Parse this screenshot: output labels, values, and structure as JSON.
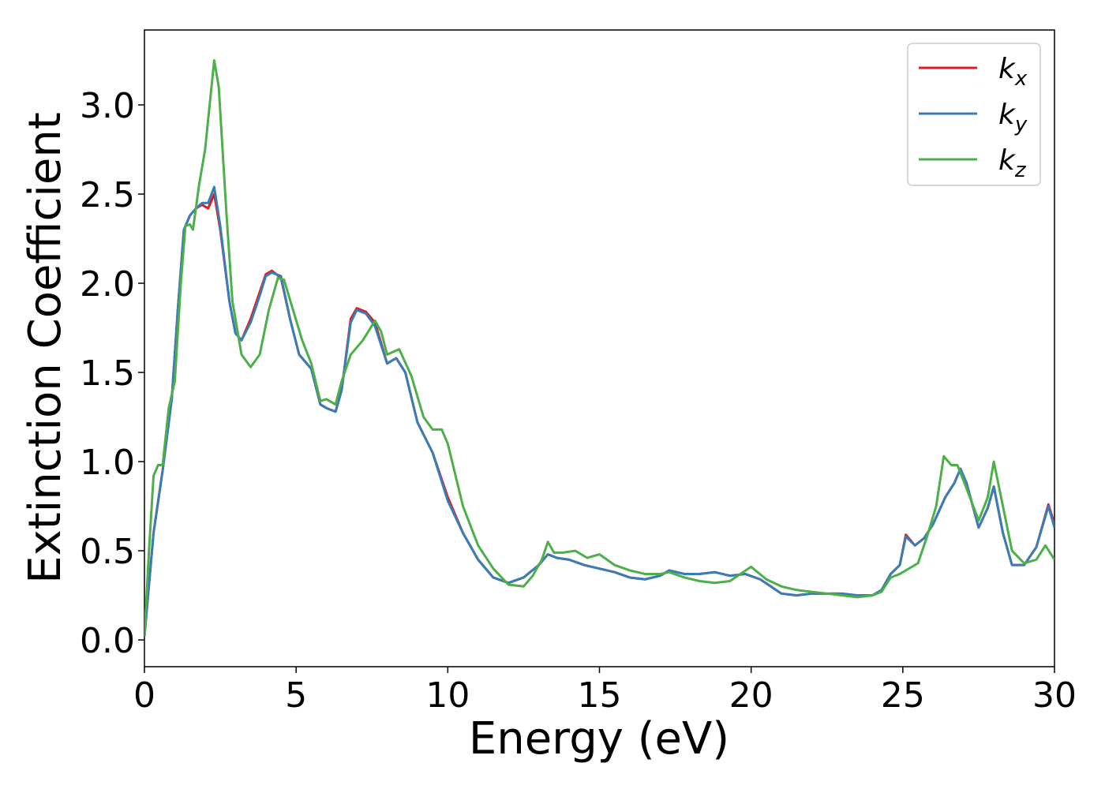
{
  "chart_data": {
    "type": "line",
    "title": "",
    "xlabel": "Energy (eV)",
    "ylabel": "Extinction Coefficient",
    "xlim": [
      0,
      30
    ],
    "ylim": [
      -0.15,
      3.42
    ],
    "xticks": [
      0,
      5,
      10,
      15,
      20,
      25,
      30
    ],
    "xtick_labels": [
      "0",
      "5",
      "10",
      "15",
      "20",
      "25",
      "30"
    ],
    "yticks": [
      0.0,
      0.5,
      1.0,
      1.5,
      2.0,
      2.5,
      3.0
    ],
    "ytick_labels": [
      "0.0",
      "0.5",
      "1.0",
      "1.5",
      "2.0",
      "2.5",
      "3.0"
    ],
    "grid": false,
    "legend_position": "top-right",
    "series": [
      {
        "name": "k",
        "subscript": "x",
        "color": "#e41a1c",
        "points": [
          [
            0,
            0.02
          ],
          [
            0.3,
            0.6
          ],
          [
            0.6,
            0.95
          ],
          [
            0.9,
            1.35
          ],
          [
            1.1,
            1.85
          ],
          [
            1.3,
            2.3
          ],
          [
            1.5,
            2.38
          ],
          [
            1.7,
            2.42
          ],
          [
            1.9,
            2.44
          ],
          [
            2.1,
            2.42
          ],
          [
            2.3,
            2.5
          ],
          [
            2.5,
            2.3
          ],
          [
            2.8,
            1.9
          ],
          [
            3.0,
            1.72
          ],
          [
            3.2,
            1.68
          ],
          [
            3.5,
            1.8
          ],
          [
            3.8,
            1.95
          ],
          [
            4.0,
            2.05
          ],
          [
            4.2,
            2.07
          ],
          [
            4.5,
            2.03
          ],
          [
            4.8,
            1.8
          ],
          [
            5.1,
            1.6
          ],
          [
            5.5,
            1.52
          ],
          [
            5.8,
            1.32
          ],
          [
            6.0,
            1.3
          ],
          [
            6.3,
            1.28
          ],
          [
            6.5,
            1.4
          ],
          [
            6.8,
            1.8
          ],
          [
            7.0,
            1.86
          ],
          [
            7.3,
            1.84
          ],
          [
            7.6,
            1.78
          ],
          [
            8.0,
            1.55
          ],
          [
            8.3,
            1.58
          ],
          [
            8.6,
            1.5
          ],
          [
            9.0,
            1.22
          ],
          [
            9.5,
            1.05
          ],
          [
            10.0,
            0.8
          ],
          [
            10.5,
            0.6
          ],
          [
            11.0,
            0.45
          ],
          [
            11.5,
            0.35
          ],
          [
            12.0,
            0.32
          ],
          [
            12.5,
            0.35
          ],
          [
            13.0,
            0.42
          ],
          [
            13.3,
            0.48
          ],
          [
            13.6,
            0.46
          ],
          [
            14.0,
            0.45
          ],
          [
            14.5,
            0.42
          ],
          [
            15.0,
            0.4
          ],
          [
            15.5,
            0.38
          ],
          [
            16.0,
            0.35
          ],
          [
            16.5,
            0.34
          ],
          [
            17.0,
            0.36
          ],
          [
            17.3,
            0.39
          ],
          [
            17.8,
            0.37
          ],
          [
            18.3,
            0.37
          ],
          [
            18.8,
            0.38
          ],
          [
            19.3,
            0.36
          ],
          [
            19.8,
            0.37
          ],
          [
            20.3,
            0.34
          ],
          [
            21.0,
            0.26
          ],
          [
            21.5,
            0.25
          ],
          [
            22.0,
            0.26
          ],
          [
            22.5,
            0.26
          ],
          [
            23.0,
            0.26
          ],
          [
            23.5,
            0.25
          ],
          [
            24.0,
            0.25
          ],
          [
            24.3,
            0.28
          ],
          [
            24.6,
            0.37
          ],
          [
            24.9,
            0.42
          ],
          [
            25.1,
            0.59
          ],
          [
            25.4,
            0.53
          ],
          [
            25.7,
            0.57
          ],
          [
            26.0,
            0.65
          ],
          [
            26.4,
            0.8
          ],
          [
            26.7,
            0.88
          ],
          [
            26.9,
            0.96
          ],
          [
            27.1,
            0.88
          ],
          [
            27.5,
            0.63
          ],
          [
            27.8,
            0.74
          ],
          [
            28.0,
            0.86
          ],
          [
            28.3,
            0.6
          ],
          [
            28.6,
            0.42
          ],
          [
            29.0,
            0.42
          ],
          [
            29.4,
            0.52
          ],
          [
            29.8,
            0.76
          ],
          [
            30.0,
            0.65
          ]
        ]
      },
      {
        "name": "k",
        "subscript": "y",
        "color": "#377eb8",
        "points": [
          [
            0,
            0.02
          ],
          [
            0.3,
            0.6
          ],
          [
            0.6,
            0.95
          ],
          [
            0.9,
            1.35
          ],
          [
            1.1,
            1.85
          ],
          [
            1.3,
            2.3
          ],
          [
            1.5,
            2.38
          ],
          [
            1.7,
            2.42
          ],
          [
            1.9,
            2.45
          ],
          [
            2.1,
            2.45
          ],
          [
            2.3,
            2.54
          ],
          [
            2.5,
            2.32
          ],
          [
            2.8,
            1.9
          ],
          [
            3.0,
            1.72
          ],
          [
            3.2,
            1.68
          ],
          [
            3.5,
            1.78
          ],
          [
            3.8,
            1.93
          ],
          [
            4.0,
            2.04
          ],
          [
            4.2,
            2.06
          ],
          [
            4.5,
            2.04
          ],
          [
            4.8,
            1.8
          ],
          [
            5.1,
            1.6
          ],
          [
            5.5,
            1.52
          ],
          [
            5.8,
            1.32
          ],
          [
            6.0,
            1.3
          ],
          [
            6.3,
            1.28
          ],
          [
            6.5,
            1.4
          ],
          [
            6.8,
            1.78
          ],
          [
            7.0,
            1.85
          ],
          [
            7.3,
            1.83
          ],
          [
            7.6,
            1.76
          ],
          [
            8.0,
            1.55
          ],
          [
            8.3,
            1.58
          ],
          [
            8.6,
            1.5
          ],
          [
            9.0,
            1.22
          ],
          [
            9.5,
            1.05
          ],
          [
            10.0,
            0.78
          ],
          [
            10.5,
            0.6
          ],
          [
            11.0,
            0.45
          ],
          [
            11.5,
            0.35
          ],
          [
            12.0,
            0.32
          ],
          [
            12.5,
            0.35
          ],
          [
            13.0,
            0.42
          ],
          [
            13.3,
            0.48
          ],
          [
            13.6,
            0.46
          ],
          [
            14.0,
            0.45
          ],
          [
            14.5,
            0.42
          ],
          [
            15.0,
            0.4
          ],
          [
            15.5,
            0.38
          ],
          [
            16.0,
            0.35
          ],
          [
            16.5,
            0.34
          ],
          [
            17.0,
            0.36
          ],
          [
            17.3,
            0.39
          ],
          [
            17.8,
            0.37
          ],
          [
            18.3,
            0.37
          ],
          [
            18.8,
            0.38
          ],
          [
            19.3,
            0.36
          ],
          [
            19.8,
            0.37
          ],
          [
            20.3,
            0.34
          ],
          [
            21.0,
            0.26
          ],
          [
            21.5,
            0.25
          ],
          [
            22.0,
            0.26
          ],
          [
            22.5,
            0.26
          ],
          [
            23.0,
            0.26
          ],
          [
            23.5,
            0.25
          ],
          [
            24.0,
            0.25
          ],
          [
            24.3,
            0.28
          ],
          [
            24.6,
            0.37
          ],
          [
            24.9,
            0.42
          ],
          [
            25.1,
            0.58
          ],
          [
            25.4,
            0.53
          ],
          [
            25.7,
            0.57
          ],
          [
            26.0,
            0.65
          ],
          [
            26.4,
            0.8
          ],
          [
            26.7,
            0.88
          ],
          [
            26.9,
            0.96
          ],
          [
            27.1,
            0.88
          ],
          [
            27.5,
            0.63
          ],
          [
            27.8,
            0.74
          ],
          [
            28.0,
            0.86
          ],
          [
            28.3,
            0.6
          ],
          [
            28.6,
            0.42
          ],
          [
            29.0,
            0.42
          ],
          [
            29.4,
            0.52
          ],
          [
            29.8,
            0.75
          ],
          [
            30.0,
            0.63
          ]
        ]
      },
      {
        "name": "k",
        "subscript": "z",
        "color": "#4daf4a",
        "points": [
          [
            0,
            0.02
          ],
          [
            0.15,
            0.5
          ],
          [
            0.3,
            0.92
          ],
          [
            0.45,
            0.98
          ],
          [
            0.6,
            0.98
          ],
          [
            0.8,
            1.3
          ],
          [
            1.0,
            1.45
          ],
          [
            1.2,
            2.0
          ],
          [
            1.35,
            2.32
          ],
          [
            1.5,
            2.33
          ],
          [
            1.6,
            2.3
          ],
          [
            1.8,
            2.55
          ],
          [
            2.0,
            2.75
          ],
          [
            2.15,
            3.0
          ],
          [
            2.3,
            3.25
          ],
          [
            2.45,
            3.1
          ],
          [
            2.7,
            2.4
          ],
          [
            2.9,
            1.9
          ],
          [
            3.2,
            1.6
          ],
          [
            3.5,
            1.53
          ],
          [
            3.8,
            1.6
          ],
          [
            4.1,
            1.85
          ],
          [
            4.4,
            2.03
          ],
          [
            4.6,
            2.02
          ],
          [
            4.9,
            1.85
          ],
          [
            5.2,
            1.68
          ],
          [
            5.5,
            1.55
          ],
          [
            5.8,
            1.34
          ],
          [
            6.0,
            1.35
          ],
          [
            6.3,
            1.32
          ],
          [
            6.5,
            1.45
          ],
          [
            6.8,
            1.6
          ],
          [
            7.2,
            1.68
          ],
          [
            7.6,
            1.79
          ],
          [
            7.8,
            1.73
          ],
          [
            8.0,
            1.6
          ],
          [
            8.4,
            1.63
          ],
          [
            8.8,
            1.48
          ],
          [
            9.2,
            1.25
          ],
          [
            9.5,
            1.18
          ],
          [
            9.8,
            1.18
          ],
          [
            10.0,
            1.1
          ],
          [
            10.5,
            0.75
          ],
          [
            11.0,
            0.53
          ],
          [
            11.5,
            0.4
          ],
          [
            12.0,
            0.31
          ],
          [
            12.5,
            0.3
          ],
          [
            12.8,
            0.36
          ],
          [
            13.1,
            0.45
          ],
          [
            13.3,
            0.55
          ],
          [
            13.5,
            0.49
          ],
          [
            13.8,
            0.49
          ],
          [
            14.2,
            0.5
          ],
          [
            14.6,
            0.46
          ],
          [
            15.0,
            0.48
          ],
          [
            15.5,
            0.42
          ],
          [
            16.0,
            0.39
          ],
          [
            16.5,
            0.37
          ],
          [
            17.0,
            0.37
          ],
          [
            17.3,
            0.38
          ],
          [
            17.8,
            0.35
          ],
          [
            18.3,
            0.33
          ],
          [
            18.8,
            0.32
          ],
          [
            19.3,
            0.33
          ],
          [
            20.0,
            0.41
          ],
          [
            20.5,
            0.34
          ],
          [
            21.0,
            0.3
          ],
          [
            21.5,
            0.28
          ],
          [
            22.0,
            0.27
          ],
          [
            22.5,
            0.26
          ],
          [
            23.0,
            0.25
          ],
          [
            23.5,
            0.24
          ],
          [
            24.0,
            0.25
          ],
          [
            24.3,
            0.27
          ],
          [
            24.6,
            0.35
          ],
          [
            24.9,
            0.37
          ],
          [
            25.2,
            0.4
          ],
          [
            25.5,
            0.43
          ],
          [
            25.8,
            0.58
          ],
          [
            26.1,
            0.75
          ],
          [
            26.35,
            1.03
          ],
          [
            26.6,
            0.98
          ],
          [
            26.8,
            0.98
          ],
          [
            27.1,
            0.85
          ],
          [
            27.5,
            0.67
          ],
          [
            27.8,
            0.8
          ],
          [
            28.0,
            1.0
          ],
          [
            28.3,
            0.75
          ],
          [
            28.6,
            0.5
          ],
          [
            29.0,
            0.43
          ],
          [
            29.4,
            0.45
          ],
          [
            29.7,
            0.53
          ],
          [
            30.0,
            0.45
          ]
        ]
      }
    ]
  }
}
